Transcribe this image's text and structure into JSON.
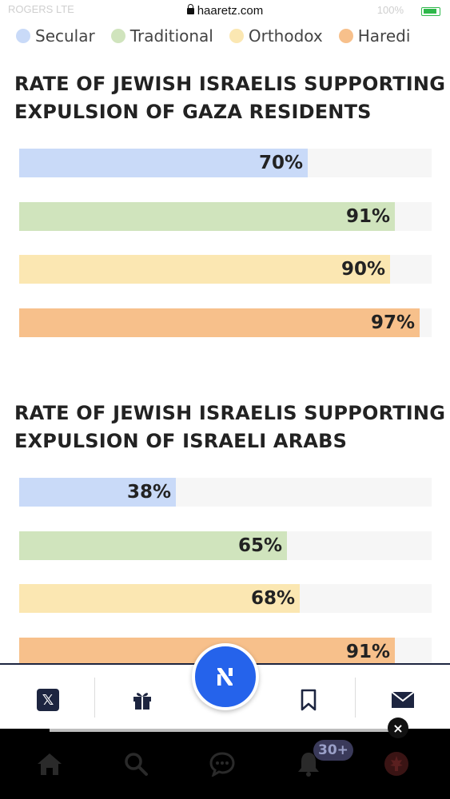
{
  "status_bar": {
    "carrier": "ROGERS  LTE",
    "url": "haaretz.com",
    "battery": "100%"
  },
  "legend": [
    {
      "label": "Secular",
      "color": "#c9daf8"
    },
    {
      "label": "Traditional",
      "color": "#d0e4bd"
    },
    {
      "label": "Orthodox",
      "color": "#fbe7b2"
    },
    {
      "label": "Haredi",
      "color": "#f7c08b"
    }
  ],
  "chart_data": [
    {
      "type": "bar",
      "title": "RATE OF JEWISH ISRAELIS SUPPORTING EXPULSION OF GAZA RESIDENTS",
      "categories": [
        "Secular",
        "Traditional",
        "Orthodox",
        "Haredi"
      ],
      "values": [
        70,
        91,
        90,
        97
      ],
      "labels": [
        "70%",
        "91%",
        "90%",
        "97%"
      ],
      "colors": [
        "#c9daf8",
        "#d0e4bd",
        "#fbe7b2",
        "#f7c08b"
      ],
      "ylim": [
        0,
        100
      ]
    },
    {
      "type": "bar",
      "title": "RATE OF JEWISH ISRAELIS SUPPORTING EXPULSION OF ISRAELI ARABS",
      "categories": [
        "Secular",
        "Traditional",
        "Orthodox",
        "Haredi"
      ],
      "values": [
        38,
        65,
        68,
        91
      ],
      "labels": [
        "38%",
        "65%",
        "68%",
        "91%"
      ],
      "colors": [
        "#c9daf8",
        "#d0e4bd",
        "#fbe7b2",
        "#f7c08b"
      ],
      "ylim": [
        0,
        100
      ]
    }
  ],
  "charts_text": {
    "c1_line1": "RATE OF JEWISH ISRAELIS SUPPORTING",
    "c1_line2": "EXPULSION OF GAZA RESIDENTS",
    "c2_line1": "RATE OF JEWISH ISRAELIS SUPPORTING",
    "c2_line2": "EXPULSION OF ISRAELI ARABS"
  },
  "toolbar": {
    "share_x_icon": "x-icon",
    "gift_icon": "gift-icon",
    "logo_icon": "haaretz-logo-icon",
    "bookmark_icon": "bookmark-icon",
    "mail_icon": "mail-icon",
    "x_glyph": "𝕏"
  },
  "ad_close": "×",
  "app_nav": {
    "icons": [
      "home-icon",
      "search-icon",
      "chat-icon",
      "bell-icon",
      "profile-icon"
    ],
    "notification_count": "30+"
  }
}
